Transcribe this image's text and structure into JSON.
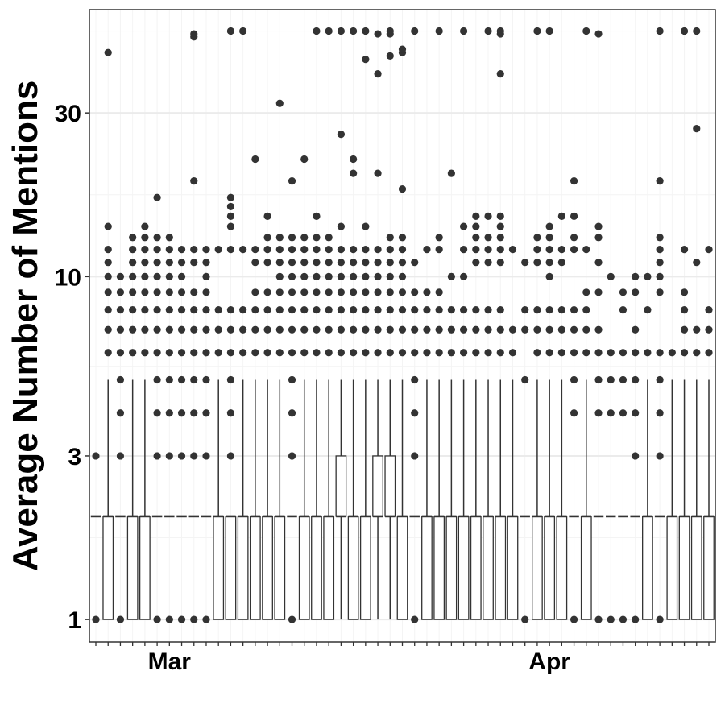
{
  "chart_data": {
    "type": "box",
    "ylabel": "Average Number of Mentions",
    "xlabel": "",
    "y_scale": "log",
    "ylim": [
      0.86,
      60
    ],
    "y_ticks": [
      {
        "value": 1,
        "label": "1"
      },
      {
        "value": 3,
        "label": "3"
      },
      {
        "value": 10,
        "label": "10"
      },
      {
        "value": 30,
        "label": "30"
      }
    ],
    "x_ticks": [
      {
        "date": "2020-03-01",
        "label": "Mar"
      },
      {
        "date": "2020-04-01",
        "label": "Apr"
      }
    ],
    "date_range": [
      "2020-02-24",
      "2020-04-14"
    ],
    "grid": true,
    "colors": {
      "box_fill": "#ffffff",
      "box_line": "#333333",
      "point": "#333333",
      "grid_major": "#ebebeb",
      "grid_minor": "#f4f4f4",
      "frame": "#333333"
    },
    "boxes": [
      {
        "date": "2020-02-24",
        "q1": 2,
        "median": 2,
        "q3": 2,
        "whisker_low": 2,
        "whisker_high": 2,
        "outliers": [
          1,
          3
        ]
      },
      {
        "date": "2020-02-25",
        "q1": 1,
        "median": 2,
        "q3": 2,
        "whisker_low": 1,
        "whisker_high": 5,
        "outliers": [
          6,
          7,
          8,
          9,
          10,
          11,
          12,
          14,
          45
        ]
      },
      {
        "date": "2020-02-26",
        "q1": 2,
        "median": 2,
        "q3": 2,
        "whisker_low": 2,
        "whisker_high": 2,
        "outliers": [
          1,
          3,
          4,
          5,
          6,
          7,
          8,
          9,
          10
        ]
      },
      {
        "date": "2020-02-27",
        "q1": 1,
        "median": 2,
        "q3": 2,
        "whisker_low": 1,
        "whisker_high": 5,
        "outliers": [
          6,
          7,
          8,
          9,
          10,
          11,
          12,
          13
        ]
      },
      {
        "date": "2020-02-28",
        "q1": 1,
        "median": 2,
        "q3": 2,
        "whisker_low": 1,
        "whisker_high": 5,
        "outliers": [
          6,
          7,
          8,
          9,
          10,
          11,
          12,
          13,
          14
        ]
      },
      {
        "date": "2020-02-29",
        "q1": 2,
        "median": 2,
        "q3": 2,
        "whisker_low": 2,
        "whisker_high": 2,
        "outliers": [
          1,
          3,
          4,
          5,
          6,
          7,
          8,
          9,
          10,
          11,
          12,
          13,
          17
        ]
      },
      {
        "date": "2020-03-01",
        "q1": 2,
        "median": 2,
        "q3": 2,
        "whisker_low": 2,
        "whisker_high": 2,
        "outliers": [
          1,
          3,
          4,
          5,
          6,
          7,
          8,
          9,
          10,
          11,
          12,
          13
        ]
      },
      {
        "date": "2020-03-02",
        "q1": 2,
        "median": 2,
        "q3": 2,
        "whisker_low": 2,
        "whisker_high": 2,
        "outliers": [
          1,
          3,
          4,
          5,
          6,
          7,
          8,
          9,
          10,
          11,
          12
        ]
      },
      {
        "date": "2020-03-03",
        "q1": 2,
        "median": 2,
        "q3": 2,
        "whisker_low": 2,
        "whisker_high": 2,
        "outliers": [
          1,
          3,
          4,
          5,
          6,
          7,
          8,
          9,
          11,
          12,
          19,
          50,
          51
        ]
      },
      {
        "date": "2020-03-04",
        "q1": 2,
        "median": 2,
        "q3": 2,
        "whisker_low": 2,
        "whisker_high": 2,
        "outliers": [
          1,
          3,
          4,
          5,
          6,
          7,
          8,
          9,
          10,
          11,
          12
        ]
      },
      {
        "date": "2020-03-05",
        "q1": 1,
        "median": 2,
        "q3": 2,
        "whisker_low": 1,
        "whisker_high": 5,
        "outliers": [
          6,
          7,
          8,
          12
        ]
      },
      {
        "date": "2020-03-06",
        "q1": 1,
        "median": 2,
        "q3": 2,
        "whisker_low": 1,
        "whisker_high": 2,
        "outliers": [
          3,
          4,
          5,
          6,
          7,
          8,
          12,
          14,
          15,
          16,
          17,
          52
        ]
      },
      {
        "date": "2020-03-07",
        "q1": 1,
        "median": 2,
        "q3": 2,
        "whisker_low": 1,
        "whisker_high": 5,
        "outliers": [
          6,
          7,
          8,
          12,
          52
        ]
      },
      {
        "date": "2020-03-08",
        "q1": 1,
        "median": 2,
        "q3": 2,
        "whisker_low": 1,
        "whisker_high": 5,
        "outliers": [
          6,
          7,
          8,
          9,
          11,
          12,
          22
        ]
      },
      {
        "date": "2020-03-09",
        "q1": 1,
        "median": 2,
        "q3": 2,
        "whisker_low": 1,
        "whisker_high": 5,
        "outliers": [
          6,
          7,
          8,
          9,
          11,
          12,
          13,
          15
        ]
      },
      {
        "date": "2020-03-10",
        "q1": 1,
        "median": 2,
        "q3": 2,
        "whisker_low": 1,
        "whisker_high": 5,
        "outliers": [
          6,
          7,
          8,
          9,
          10,
          11,
          12,
          13,
          32
        ]
      },
      {
        "date": "2020-03-11",
        "q1": 2,
        "median": 2,
        "q3": 2,
        "whisker_low": 2,
        "whisker_high": 2,
        "outliers": [
          1,
          3,
          4,
          5,
          6,
          7,
          8,
          9,
          10,
          11,
          12,
          13,
          19
        ]
      },
      {
        "date": "2020-03-12",
        "q1": 1,
        "median": 2,
        "q3": 2,
        "whisker_low": 1,
        "whisker_high": 5,
        "outliers": [
          6,
          7,
          8,
          9,
          10,
          11,
          12,
          13,
          22
        ]
      },
      {
        "date": "2020-03-13",
        "q1": 1,
        "median": 2,
        "q3": 2,
        "whisker_low": 1,
        "whisker_high": 5,
        "outliers": [
          6,
          7,
          8,
          9,
          10,
          11,
          12,
          13,
          15,
          52
        ]
      },
      {
        "date": "2020-03-14",
        "q1": 1,
        "median": 2,
        "q3": 2,
        "whisker_low": 1,
        "whisker_high": 5,
        "outliers": [
          6,
          7,
          8,
          9,
          10,
          11,
          12,
          13,
          52
        ]
      },
      {
        "date": "2020-03-15",
        "q1": 2,
        "median": 2,
        "q3": 3,
        "whisker_low": 1,
        "whisker_high": 5,
        "outliers": [
          6,
          7,
          8,
          9,
          10,
          11,
          12,
          14,
          26,
          52
        ]
      },
      {
        "date": "2020-03-16",
        "q1": 1,
        "median": 2,
        "q3": 2,
        "whisker_low": 1,
        "whisker_high": 5,
        "outliers": [
          6,
          7,
          8,
          9,
          10,
          11,
          12,
          20,
          22,
          52
        ]
      },
      {
        "date": "2020-03-17",
        "q1": 1,
        "median": 2,
        "q3": 2,
        "whisker_low": 1,
        "whisker_high": 5,
        "outliers": [
          6,
          7,
          8,
          9,
          10,
          11,
          12,
          14,
          43,
          52
        ]
      },
      {
        "date": "2020-03-18",
        "q1": 2,
        "median": 2,
        "q3": 3,
        "whisker_low": 1,
        "whisker_high": 5,
        "outliers": [
          6,
          7,
          8,
          9,
          10,
          11,
          12,
          20,
          39,
          51
        ]
      },
      {
        "date": "2020-03-19",
        "q1": 2,
        "median": 2,
        "q3": 3,
        "whisker_low": 1,
        "whisker_high": 5,
        "outliers": [
          6,
          7,
          8,
          9,
          10,
          11,
          12,
          13,
          44,
          51,
          52
        ]
      },
      {
        "date": "2020-03-20",
        "q1": 1,
        "median": 2,
        "q3": 2,
        "whisker_low": 1,
        "whisker_high": 5,
        "outliers": [
          6,
          7,
          8,
          9,
          10,
          11,
          12,
          13,
          18,
          45,
          46
        ]
      },
      {
        "date": "2020-03-21",
        "q1": 2,
        "median": 2,
        "q3": 2,
        "whisker_low": 2,
        "whisker_high": 2,
        "outliers": [
          1,
          3,
          4,
          5,
          6,
          7,
          8,
          9,
          11,
          52
        ]
      },
      {
        "date": "2020-03-22",
        "q1": 1,
        "median": 2,
        "q3": 2,
        "whisker_low": 1,
        "whisker_high": 5,
        "outliers": [
          6,
          7,
          8,
          9,
          12
        ]
      },
      {
        "date": "2020-03-23",
        "q1": 1,
        "median": 2,
        "q3": 2,
        "whisker_low": 1,
        "whisker_high": 5,
        "outliers": [
          6,
          7,
          8,
          9,
          12,
          13,
          52
        ]
      },
      {
        "date": "2020-03-24",
        "q1": 1,
        "median": 2,
        "q3": 2,
        "whisker_low": 1,
        "whisker_high": 5,
        "outliers": [
          6,
          7,
          8,
          10,
          20
        ]
      },
      {
        "date": "2020-03-25",
        "q1": 1,
        "median": 2,
        "q3": 2,
        "whisker_low": 1,
        "whisker_high": 5,
        "outliers": [
          6,
          7,
          8,
          10,
          12,
          14,
          52
        ]
      },
      {
        "date": "2020-03-26",
        "q1": 1,
        "median": 2,
        "q3": 2,
        "whisker_low": 1,
        "whisker_high": 5,
        "outliers": [
          6,
          7,
          8,
          11,
          12,
          13,
          14,
          15
        ]
      },
      {
        "date": "2020-03-27",
        "q1": 1,
        "median": 2,
        "q3": 2,
        "whisker_low": 1,
        "whisker_high": 5,
        "outliers": [
          6,
          7,
          8,
          11,
          12,
          13,
          15,
          52
        ]
      },
      {
        "date": "2020-03-28",
        "q1": 1,
        "median": 2,
        "q3": 2,
        "whisker_low": 1,
        "whisker_high": 5,
        "outliers": [
          6,
          7,
          8,
          11,
          12,
          13,
          14,
          15,
          39,
          51,
          52
        ]
      },
      {
        "date": "2020-03-29",
        "q1": 1,
        "median": 2,
        "q3": 2,
        "whisker_low": 1,
        "whisker_high": 5,
        "outliers": [
          6,
          7,
          12
        ]
      },
      {
        "date": "2020-03-30",
        "q1": 2,
        "median": 2,
        "q3": 2,
        "whisker_low": 2,
        "whisker_high": 2,
        "outliers": [
          1,
          5,
          7,
          8,
          11
        ]
      },
      {
        "date": "2020-03-31",
        "q1": 1,
        "median": 2,
        "q3": 2,
        "whisker_low": 1,
        "whisker_high": 5,
        "outliers": [
          6,
          7,
          8,
          11,
          12,
          13,
          52
        ]
      },
      {
        "date": "2020-04-01",
        "q1": 1,
        "median": 2,
        "q3": 2,
        "whisker_low": 1,
        "whisker_high": 5,
        "outliers": [
          6,
          7,
          8,
          10,
          11,
          12,
          13,
          14,
          52
        ]
      },
      {
        "date": "2020-04-02",
        "q1": 1,
        "median": 2,
        "q3": 2,
        "whisker_low": 1,
        "whisker_high": 5,
        "outliers": [
          6,
          7,
          8,
          11,
          12,
          15
        ]
      },
      {
        "date": "2020-04-03",
        "q1": 2,
        "median": 2,
        "q3": 2,
        "whisker_low": 2,
        "whisker_high": 2,
        "outliers": [
          1,
          4,
          5,
          6,
          7,
          8,
          12,
          13,
          15,
          19
        ]
      },
      {
        "date": "2020-04-04",
        "q1": 1,
        "median": 2,
        "q3": 2,
        "whisker_low": 1,
        "whisker_high": 5,
        "outliers": [
          6,
          7,
          8,
          9,
          12,
          52
        ]
      },
      {
        "date": "2020-04-05",
        "q1": 2,
        "median": 2,
        "q3": 2,
        "whisker_low": 2,
        "whisker_high": 2,
        "outliers": [
          1,
          4,
          5,
          6,
          7,
          9,
          11,
          13,
          14,
          51
        ]
      },
      {
        "date": "2020-04-06",
        "q1": 2,
        "median": 2,
        "q3": 2,
        "whisker_low": 2,
        "whisker_high": 2,
        "outliers": [
          1,
          4,
          5,
          6,
          10
        ]
      },
      {
        "date": "2020-04-07",
        "q1": 2,
        "median": 2,
        "q3": 2,
        "whisker_low": 2,
        "whisker_high": 2,
        "outliers": [
          1,
          4,
          5,
          6,
          8,
          9
        ]
      },
      {
        "date": "2020-04-08",
        "q1": 2,
        "median": 2,
        "q3": 2,
        "whisker_low": 2,
        "whisker_high": 2,
        "outliers": [
          1,
          3,
          4,
          5,
          6,
          7,
          9,
          10
        ]
      },
      {
        "date": "2020-04-09",
        "q1": 1,
        "median": 2,
        "q3": 2,
        "whisker_low": 1,
        "whisker_high": 5,
        "outliers": [
          6,
          8,
          10
        ]
      },
      {
        "date": "2020-04-10",
        "q1": 2,
        "median": 2,
        "q3": 2,
        "whisker_low": 2,
        "whisker_high": 2,
        "outliers": [
          1,
          3,
          4,
          5,
          6,
          9,
          10,
          11,
          12,
          13,
          19,
          52
        ]
      },
      {
        "date": "2020-04-11",
        "q1": 1,
        "median": 2,
        "q3": 2,
        "whisker_low": 1,
        "whisker_high": 5,
        "outliers": [
          6
        ]
      },
      {
        "date": "2020-04-12",
        "q1": 1,
        "median": 2,
        "q3": 2,
        "whisker_low": 1,
        "whisker_high": 5,
        "outliers": [
          6,
          7,
          8,
          9,
          12,
          52
        ]
      },
      {
        "date": "2020-04-13",
        "q1": 1,
        "median": 2,
        "q3": 2,
        "whisker_low": 1,
        "whisker_high": 5,
        "outliers": [
          6,
          7,
          11,
          27,
          52
        ]
      },
      {
        "date": "2020-04-14",
        "q1": 1,
        "median": 2,
        "q3": 2,
        "whisker_low": 1,
        "whisker_high": 5,
        "outliers": [
          6,
          7,
          8,
          12
        ]
      }
    ]
  }
}
